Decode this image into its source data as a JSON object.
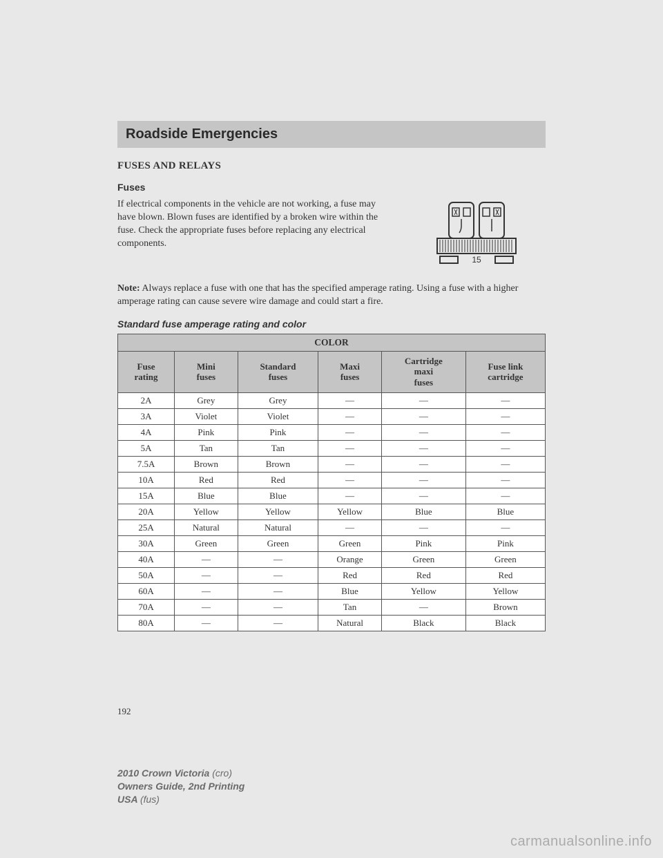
{
  "section_header": "Roadside Emergencies",
  "heading_main": "FUSES AND RELAYS",
  "heading_sub": "Fuses",
  "intro_paragraph": "If electrical components in the vehicle are not working, a fuse may have blown. Blown fuses are identified by a broken wire within the fuse. Check the appropriate fuses before replacing any electrical components.",
  "note_label": "Note:",
  "note_text": " Always replace a fuse with one that has the specified amperage rating. Using a fuse with a higher amperage rating can cause severe wire damage and could start a fire.",
  "table_caption": "Standard fuse amperage rating and color",
  "fuse_svg_label": "15",
  "table": {
    "super_header": "COLOR",
    "columns": [
      "Fuse\nrating",
      "Mini\nfuses",
      "Standard\nfuses",
      "Maxi\nfuses",
      "Cartridge\nmaxi\nfuses",
      "Fuse link\ncartridge"
    ],
    "rows": [
      [
        "2A",
        "Grey",
        "Grey",
        "—",
        "—",
        "—"
      ],
      [
        "3A",
        "Violet",
        "Violet",
        "—",
        "—",
        "—"
      ],
      [
        "4A",
        "Pink",
        "Pink",
        "—",
        "—",
        "—"
      ],
      [
        "5A",
        "Tan",
        "Tan",
        "—",
        "—",
        "—"
      ],
      [
        "7.5A",
        "Brown",
        "Brown",
        "—",
        "—",
        "—"
      ],
      [
        "10A",
        "Red",
        "Red",
        "—",
        "—",
        "—"
      ],
      [
        "15A",
        "Blue",
        "Blue",
        "—",
        "—",
        "—"
      ],
      [
        "20A",
        "Yellow",
        "Yellow",
        "Yellow",
        "Blue",
        "Blue"
      ],
      [
        "25A",
        "Natural",
        "Natural",
        "—",
        "—",
        "—"
      ],
      [
        "30A",
        "Green",
        "Green",
        "Green",
        "Pink",
        "Pink"
      ],
      [
        "40A",
        "—",
        "—",
        "Orange",
        "Green",
        "Green"
      ],
      [
        "50A",
        "—",
        "—",
        "Red",
        "Red",
        "Red"
      ],
      [
        "60A",
        "—",
        "—",
        "Blue",
        "Yellow",
        "Yellow"
      ],
      [
        "70A",
        "—",
        "—",
        "Tan",
        "—",
        "Brown"
      ],
      [
        "80A",
        "—",
        "—",
        "Natural",
        "Black",
        "Black"
      ]
    ]
  },
  "page_number": "192",
  "footer": {
    "model": "2010 Crown Victoria",
    "model_code": "(cro)",
    "guide": "Owners Guide, 2nd Printing",
    "region": "USA",
    "region_code": "(fus)"
  },
  "watermark": "carmanualsonline.info"
}
